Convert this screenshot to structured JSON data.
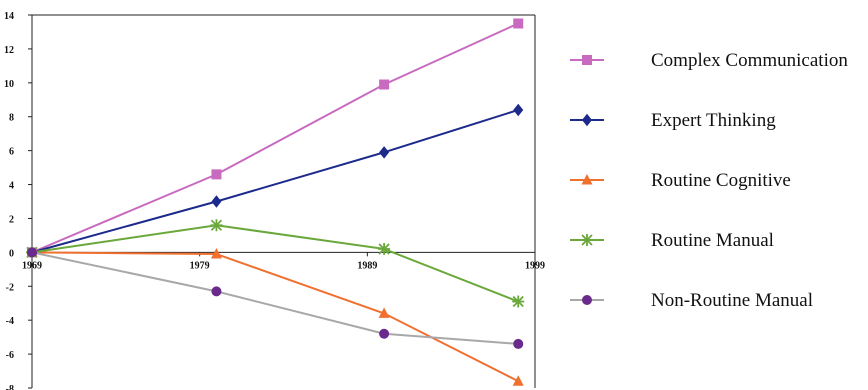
{
  "chart_data": {
    "type": "line",
    "x": [
      1969,
      1980,
      1990,
      1998
    ],
    "xticks": [
      "1969",
      "1979",
      "1989",
      "1999"
    ],
    "xtick_values": [
      1969,
      1979,
      1989,
      1999
    ],
    "xlim": [
      1969,
      1999
    ],
    "ylim": [
      -8,
      14
    ],
    "yticks": [
      14,
      12,
      10,
      8,
      6,
      4,
      2,
      0,
      -2,
      -4,
      -6,
      -8
    ],
    "grid": false,
    "legend_position": "right",
    "series": [
      {
        "name": "Complex Communication",
        "color": "#c86bc0",
        "marker": "square",
        "values": [
          0,
          4.6,
          9.9,
          13.5
        ]
      },
      {
        "name": "Expert Thinking",
        "color": "#1c2a8c",
        "marker": "diamond",
        "values": [
          0,
          3.0,
          5.9,
          8.4
        ]
      },
      {
        "name": "Routine Cognitive",
        "color": "#f07030",
        "marker": "triangle",
        "values": [
          0,
          -0.1,
          -3.6,
          -7.6
        ]
      },
      {
        "name": "Routine Manual",
        "color": "#6aa83c",
        "marker": "asterisk",
        "values": [
          0,
          1.6,
          0.2,
          -2.9
        ]
      },
      {
        "name": "Non-Routine Manual",
        "color": "#6a2a8c",
        "marker": "circle",
        "values": [
          0,
          -2.3,
          -4.8,
          -5.4
        ]
      }
    ],
    "line_color": "#a8a8a8"
  }
}
